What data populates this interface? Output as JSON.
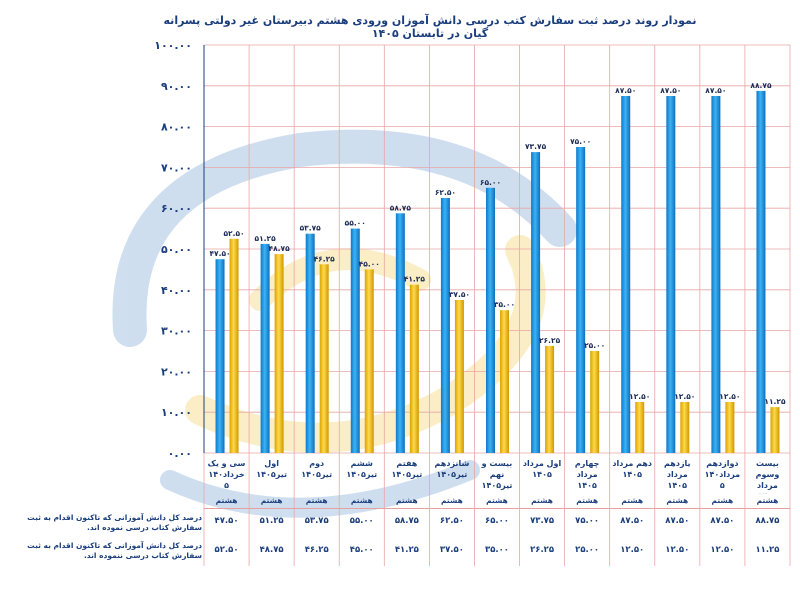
{
  "chart_data": {
    "type": "bar",
    "title": "نمودار روند  درصد  ثبت سفارش کتب درسی دانش آموزان  ورودی  هشتم  دبیرستان غیر دولتی پسرانه گیان  در تابستان ۱۴۰۵",
    "categories": [
      "سی و یک\nخرداد۱۴۰\n۵",
      "اول\nتیر۱۴۰۵",
      "دوم\nتیر۱۴۰۵",
      "ششم\nتیر۱۴۰۵",
      "هفتم\nتیر۱۴۰۵",
      "شانزدهم\nتیر۱۴۰۵",
      "بیست و نهم\nتیر۱۴۰۵",
      "اول مرداد\n۱۴۰۵",
      "چهارم\nمرداد\n۱۴۰۵",
      "دهم مرداد\n۱۴۰۵",
      "یازدهم\nمرداد\n۱۴۰۵",
      "دوازدهم\nمرداد۱۴۰\n۵",
      "بیست وسوم\nمرداد\n۱۴۰۵"
    ],
    "grade_label": "هشتم",
    "series": [
      {
        "name": "درصد کل دانش آموزانی که تاکنون اقدام به ثبت سفارش کتاب درسی نموده اند.",
        "values": [
          47.5,
          51.25,
          53.75,
          55.0,
          58.75,
          62.5,
          65.0,
          73.75,
          75.0,
          87.5,
          87.5,
          87.5,
          88.75
        ],
        "labels": [
          "۴۷.۵۰",
          "۵۱.۲۵",
          "۵۳.۷۵",
          "۵۵.۰۰",
          "۵۸.۷۵",
          "۶۲.۵۰",
          "۶۵.۰۰",
          "۷۳.۷۵",
          "۷۵.۰۰",
          "۸۷.۵۰",
          "۸۷.۵۰",
          "۸۷.۵۰",
          "۸۸.۷۵"
        ],
        "color": "#1e9be8"
      },
      {
        "name": "درصد کل دانش آموزانی که تاکنون اقدام به ثبت سفارش کتاب درسی ننموده اند.",
        "values": [
          52.5,
          48.75,
          46.25,
          45.0,
          41.25,
          37.5,
          35.0,
          26.25,
          25.0,
          12.5,
          12.5,
          12.5,
          11.25
        ],
        "labels": [
          "۵۲.۵۰",
          "۴۸.۷۵",
          "۴۶.۲۵",
          "۴۵.۰۰",
          "۴۱.۲۵",
          "۳۷.۵۰",
          "۳۵.۰۰",
          "۲۶.۲۵",
          "۲۵.۰۰",
          "۱۲.۵۰",
          "۱۲.۵۰",
          "۱۲.۵۰",
          "۱۱.۲۵"
        ],
        "color": "#f5c20c"
      }
    ],
    "ylim": [
      0,
      100
    ],
    "yticks": [
      "۰.۰۰",
      "۱۰.۰۰",
      "۲۰.۰۰",
      "۳۰.۰۰",
      "۴۰.۰۰",
      "۵۰.۰۰",
      "۶۰.۰۰",
      "۷۰.۰۰",
      "۸۰.۰۰",
      "۹۰.۰۰",
      "۱۰۰.۰۰"
    ],
    "grid": true
  }
}
